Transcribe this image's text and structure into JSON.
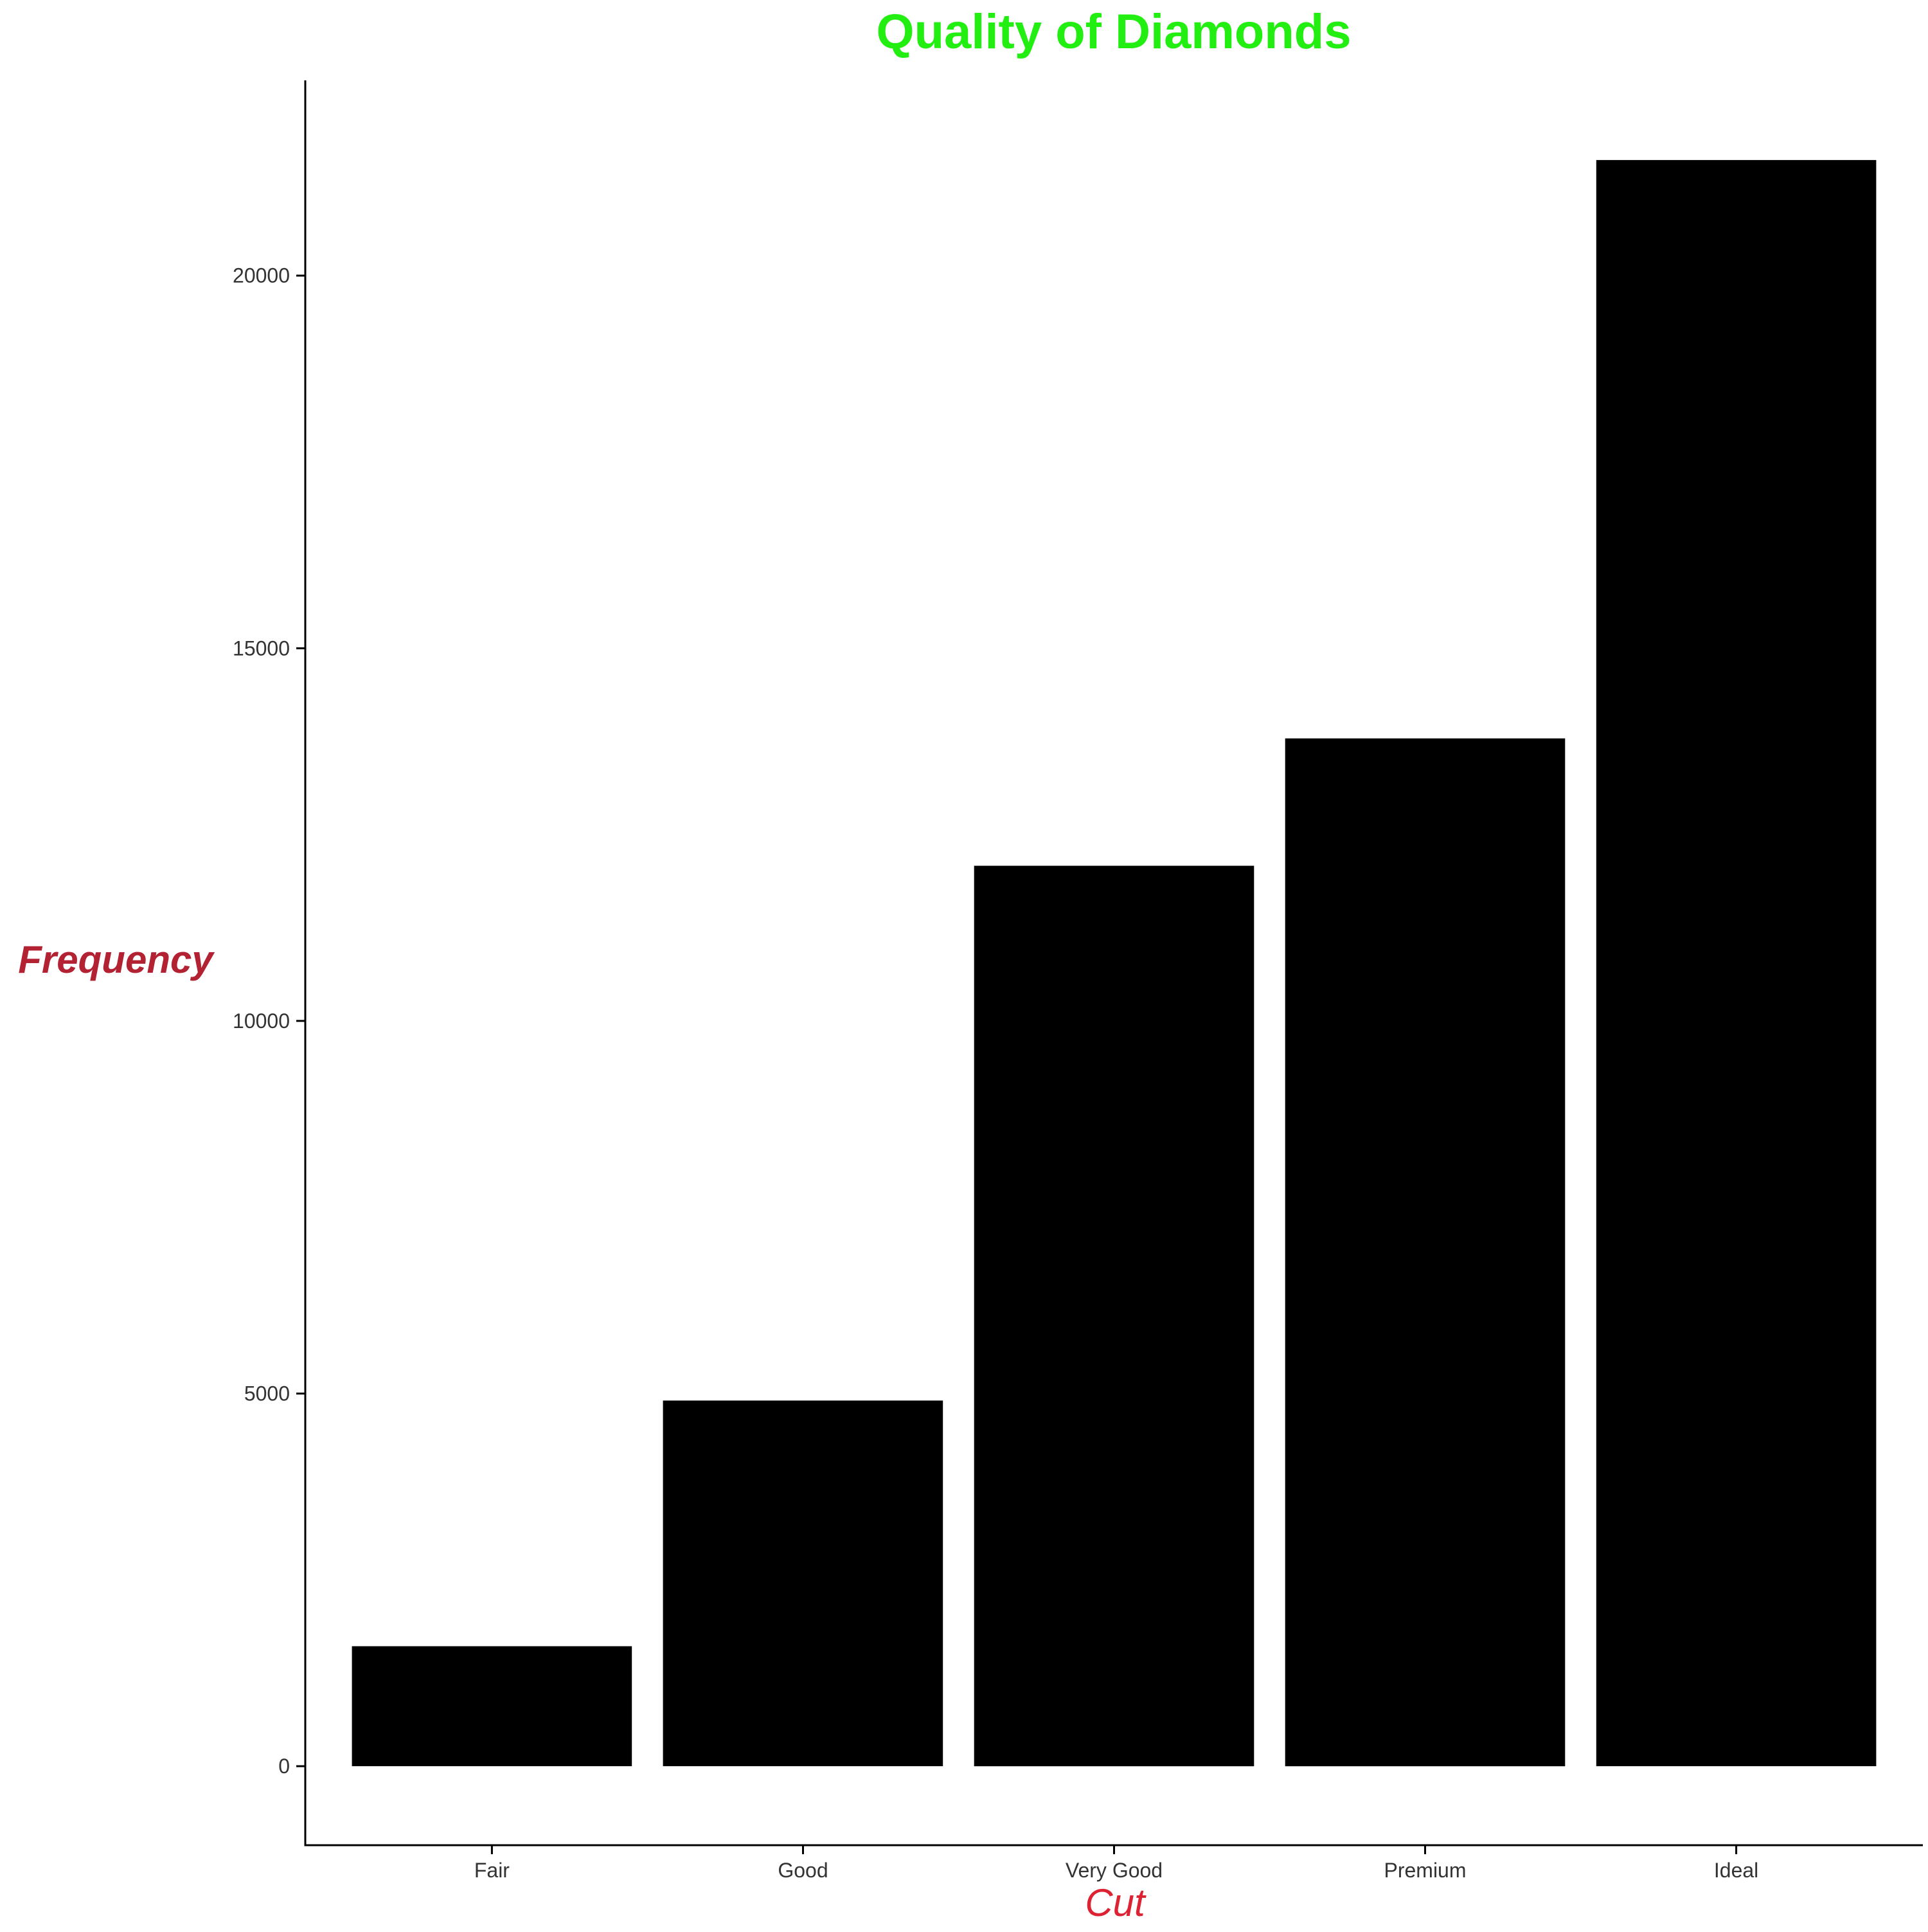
{
  "chart_data": {
    "type": "bar",
    "title": "Quality of Diamonds",
    "xlabel": "Cut",
    "ylabel": "Frequency",
    "categories": [
      "Fair",
      "Good",
      "Very Good",
      "Premium",
      "Ideal"
    ],
    "values": [
      1610,
      4906,
      12082,
      13791,
      21551
    ],
    "ylim": [
      -1060,
      22620
    ],
    "yticks": [
      0,
      5000,
      10000,
      15000,
      20000
    ],
    "grid": false,
    "legend": "none",
    "colors": {
      "bar": "#000000",
      "title": "#22ee11",
      "xlabel": "#dd2233",
      "ylabel": "#b22233",
      "axis": "#000000",
      "tick_label": "#333333"
    }
  }
}
